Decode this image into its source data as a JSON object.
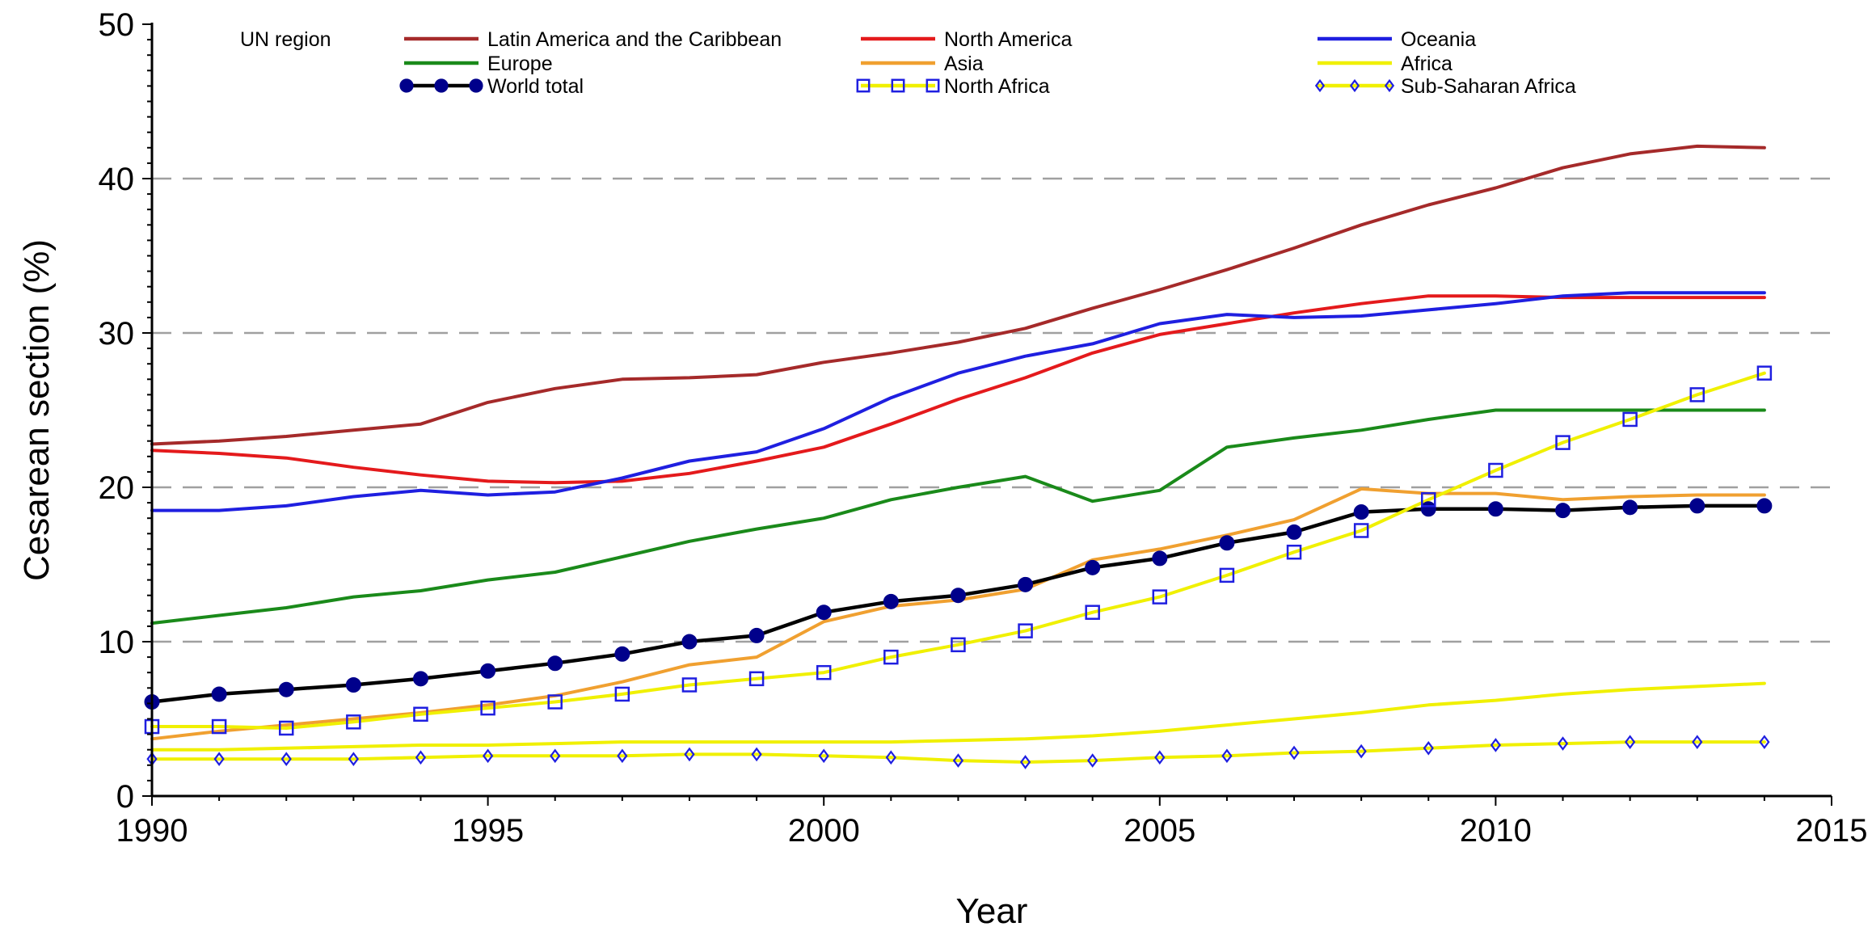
{
  "chart_data": {
    "type": "line",
    "xlabel": "Year",
    "ylabel": "Cesarean section (%)",
    "xlim": [
      1990,
      2015
    ],
    "ylim": [
      0,
      50
    ],
    "x_ticks": [
      1990,
      1995,
      2000,
      2005,
      2010,
      2015
    ],
    "y_ticks": [
      0,
      10,
      20,
      30,
      40,
      50
    ],
    "grid": "horizontal dashed at 10, 20, 30, 40",
    "legend_title": "UN region",
    "legend_position": "top",
    "x": [
      1990,
      1991,
      1992,
      1993,
      1994,
      1995,
      1996,
      1997,
      1998,
      1999,
      2000,
      2001,
      2002,
      2003,
      2004,
      2005,
      2006,
      2007,
      2008,
      2009,
      2010,
      2011,
      2012,
      2013,
      2014
    ],
    "series": [
      {
        "name": "Latin America and the Caribbean",
        "color": "#a52a2a",
        "marker": "none",
        "values": [
          22.8,
          23.0,
          23.3,
          23.7,
          24.1,
          25.5,
          26.4,
          27.0,
          27.1,
          27.3,
          28.1,
          28.7,
          29.4,
          30.3,
          31.6,
          32.8,
          34.1,
          35.5,
          37.0,
          38.3,
          39.4,
          40.7,
          41.6,
          42.1,
          42.0
        ]
      },
      {
        "name": "North America",
        "color": "#e41a1c",
        "marker": "none",
        "values": [
          22.4,
          22.2,
          21.9,
          21.3,
          20.8,
          20.4,
          20.3,
          20.4,
          20.9,
          21.7,
          22.6,
          24.1,
          25.7,
          27.1,
          28.7,
          29.9,
          30.6,
          31.3,
          31.9,
          32.4,
          32.4,
          32.3,
          32.3,
          32.3,
          32.3
        ]
      },
      {
        "name": "Oceania",
        "color": "#1f1fe0",
        "marker": "none",
        "values": [
          18.5,
          18.5,
          18.8,
          19.4,
          19.8,
          19.5,
          19.7,
          20.6,
          21.7,
          22.3,
          23.8,
          25.8,
          27.4,
          28.5,
          29.3,
          30.6,
          31.2,
          31.0,
          31.1,
          31.5,
          31.9,
          32.4,
          32.6,
          32.6,
          32.6
        ]
      },
      {
        "name": "Europe",
        "color": "#1a8a1a",
        "marker": "none",
        "values": [
          11.2,
          11.7,
          12.2,
          12.9,
          13.3,
          14.0,
          14.5,
          15.5,
          16.5,
          17.3,
          18.0,
          19.2,
          20.0,
          20.7,
          19.1,
          19.8,
          22.6,
          23.2,
          23.7,
          24.4,
          25.0,
          25.0,
          25.0,
          25.0,
          25.0
        ]
      },
      {
        "name": "Asia",
        "color": "#f0a030",
        "marker": "none",
        "values": [
          3.7,
          4.2,
          4.6,
          5.0,
          5.4,
          5.9,
          6.5,
          7.4,
          8.5,
          9.0,
          11.3,
          12.3,
          12.7,
          13.4,
          15.3,
          16.0,
          16.9,
          17.9,
          19.9,
          19.6,
          19.6,
          19.2,
          19.4,
          19.5,
          19.5
        ]
      },
      {
        "name": "Africa",
        "color": "#f0f000",
        "marker": "none",
        "values": [
          3.0,
          3.0,
          3.1,
          3.2,
          3.3,
          3.3,
          3.4,
          3.5,
          3.5,
          3.5,
          3.5,
          3.5,
          3.6,
          3.7,
          3.9,
          4.2,
          4.6,
          5.0,
          5.4,
          5.9,
          6.2,
          6.6,
          6.9,
          7.1,
          7.3
        ]
      },
      {
        "name": "World total",
        "color": "#000000",
        "marker": "filled-circle",
        "marker_color": "#00008b",
        "values": [
          6.1,
          6.6,
          6.9,
          7.2,
          7.6,
          8.1,
          8.6,
          9.2,
          10.0,
          10.4,
          11.9,
          12.6,
          13.0,
          13.7,
          14.8,
          15.4,
          16.4,
          17.1,
          18.4,
          18.6,
          18.6,
          18.5,
          18.7,
          18.8,
          18.8
        ]
      },
      {
        "name": "North Africa",
        "color": "#f0f000",
        "marker": "open-square",
        "marker_color": "#1f1fe0",
        "values": [
          4.5,
          4.5,
          4.4,
          4.8,
          5.3,
          5.7,
          6.1,
          6.6,
          7.2,
          7.6,
          8.0,
          9.0,
          9.8,
          10.7,
          11.9,
          12.9,
          14.3,
          15.8,
          17.2,
          19.2,
          21.1,
          22.9,
          24.4,
          26.0,
          27.4
        ]
      },
      {
        "name": "Sub-Saharan Africa",
        "color": "#f0f000",
        "marker": "open-diamond",
        "marker_color": "#1f1fe0",
        "values": [
          2.4,
          2.4,
          2.4,
          2.4,
          2.5,
          2.6,
          2.6,
          2.6,
          2.7,
          2.7,
          2.6,
          2.5,
          2.3,
          2.2,
          2.3,
          2.5,
          2.6,
          2.8,
          2.9,
          3.1,
          3.3,
          3.4,
          3.5,
          3.5,
          3.5
        ]
      }
    ]
  }
}
